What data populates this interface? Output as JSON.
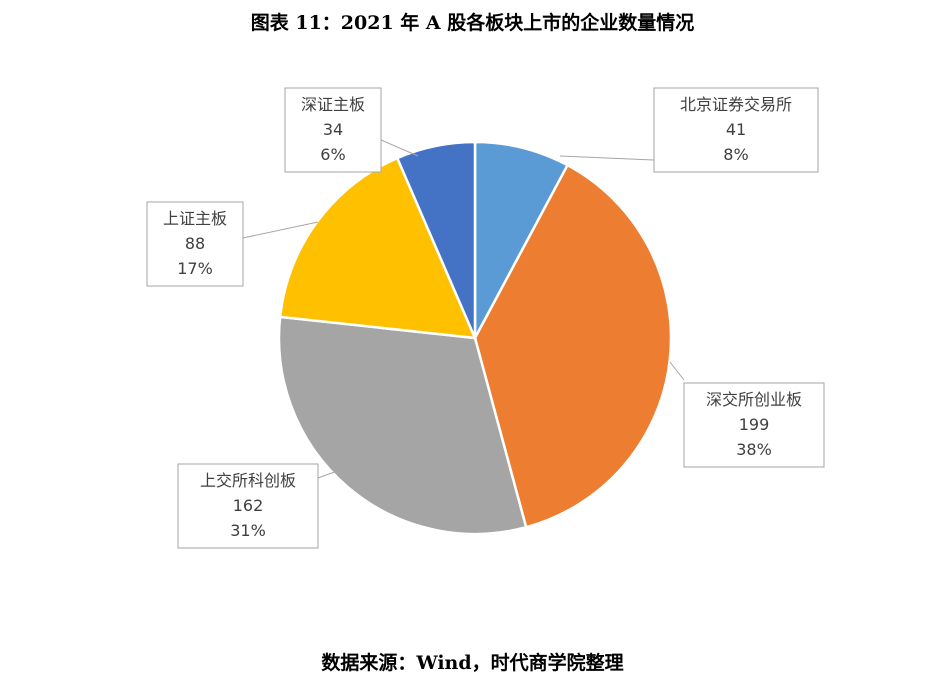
{
  "title": "图表 11：2021 年 A 股各板块上市的企业数量情况",
  "source": "数据来源：Wind，时代商学院整理",
  "chart_data": {
    "type": "pie",
    "title": "图表 11：2021 年 A 股各板块上市的企业数量情况",
    "categories": [
      "北京证券交易所",
      "深交所创业板",
      "上交所科创板",
      "上证主板",
      "深证主板"
    ],
    "values": [
      41,
      199,
      162,
      88,
      34
    ],
    "percents": [
      "8%",
      "38%",
      "31%",
      "17%",
      "6%"
    ],
    "colors": [
      "#5B9BD5",
      "#ED7D31",
      "#A5A5A5",
      "#FFC000",
      "#4472C4"
    ],
    "legend": "none"
  }
}
